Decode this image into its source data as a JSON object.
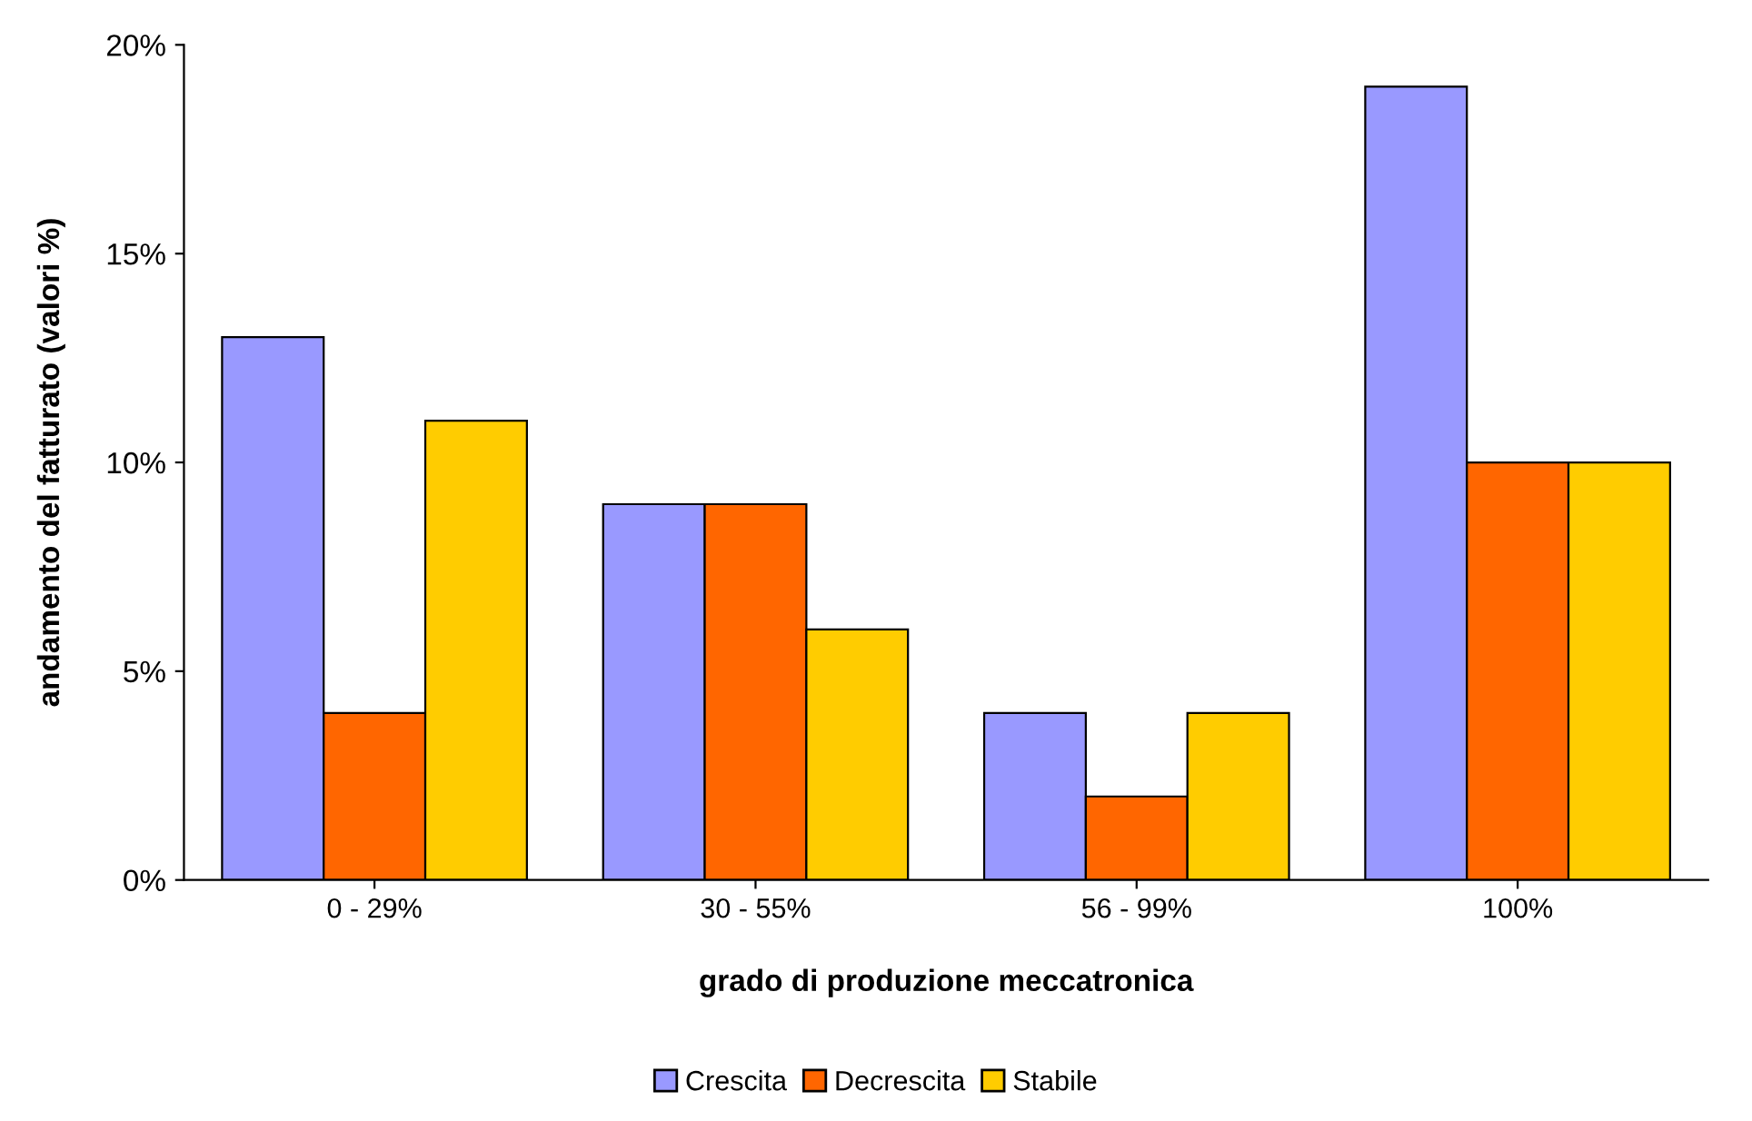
{
  "chart_data": {
    "type": "bar",
    "xlabel": "grado di produzione meccatronica",
    "ylabel": "andamento del fatturato (valori %)",
    "categories": [
      "0 - 29%",
      "30 - 55%",
      "56 - 99%",
      "100%"
    ],
    "series": [
      {
        "name": "Crescita",
        "color": "#9999ff",
        "values": [
          13,
          9,
          4,
          19
        ]
      },
      {
        "name": "Decrescita",
        "color": "#ff6600",
        "values": [
          4,
          9,
          2,
          10
        ]
      },
      {
        "name": "Stabile",
        "color": "#ffcc00",
        "values": [
          11,
          6,
          4,
          10
        ]
      }
    ],
    "ylim": [
      0,
      20
    ],
    "yticks": [
      {
        "value": 0,
        "label": "0%"
      },
      {
        "value": 5,
        "label": "5%"
      },
      {
        "value": 10,
        "label": "10%"
      },
      {
        "value": 15,
        "label": "15%"
      },
      {
        "value": 20,
        "label": "20%"
      }
    ],
    "grid": false,
    "legend": "bottom"
  }
}
